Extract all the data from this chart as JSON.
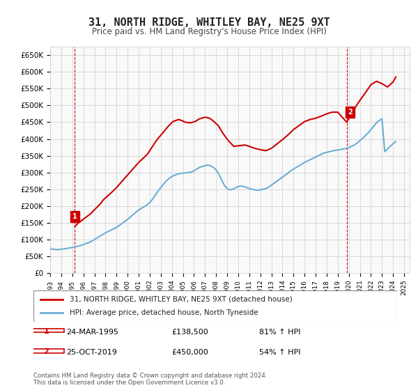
{
  "title": "31, NORTH RIDGE, WHITLEY BAY, NE25 9XT",
  "subtitle": "Price paid vs. HM Land Registry's House Price Index (HPI)",
  "legend_line1": "31, NORTH RIDGE, WHITLEY BAY, NE25 9XT (detached house)",
  "legend_line2": "HPI: Average price, detached house, North Tyneside",
  "footnote": "Contains HM Land Registry data © Crown copyright and database right 2024.\nThis data is licensed under the Open Government Licence v3.0.",
  "annotation1_label": "1",
  "annotation1_date": "24-MAR-1995",
  "annotation1_price": "£138,500",
  "annotation1_hpi": "81% ↑ HPI",
  "annotation2_label": "2",
  "annotation2_date": "25-OCT-2019",
  "annotation2_price": "£450,000",
  "annotation2_hpi": "54% ↑ HPI",
  "sale1_x": 1995.23,
  "sale1_y": 138500,
  "sale2_x": 2019.81,
  "sale2_y": 450000,
  "hpi_color": "#6baed6",
  "price_color": "#cc0000",
  "ylim": [
    0,
    675000
  ],
  "xlim_start": 1993,
  "xlim_end": 2025.5,
  "background_color": "#ffffff",
  "grid_color": "#cccccc",
  "annotation_box_color": "#cc0000",
  "hpi_data_x": [
    1993,
    1993.25,
    1993.5,
    1993.75,
    1994,
    1994.25,
    1994.5,
    1994.75,
    1995,
    1995.25,
    1995.5,
    1995.75,
    1996,
    1996.25,
    1996.5,
    1996.75,
    1997,
    1997.25,
    1997.5,
    1997.75,
    1998,
    1998.25,
    1998.5,
    1998.75,
    1999,
    1999.25,
    1999.5,
    1999.75,
    2000,
    2000.25,
    2000.5,
    2000.75,
    2001,
    2001.25,
    2001.5,
    2001.75,
    2002,
    2002.25,
    2002.5,
    2002.75,
    2003,
    2003.25,
    2003.5,
    2003.75,
    2004,
    2004.25,
    2004.5,
    2004.75,
    2005,
    2005.25,
    2005.5,
    2005.75,
    2006,
    2006.25,
    2006.5,
    2006.75,
    2007,
    2007.25,
    2007.5,
    2007.75,
    2008,
    2008.25,
    2008.5,
    2008.75,
    2009,
    2009.25,
    2009.5,
    2009.75,
    2010,
    2010.25,
    2010.5,
    2010.75,
    2011,
    2011.25,
    2011.5,
    2011.75,
    2012,
    2012.25,
    2012.5,
    2012.75,
    2013,
    2013.25,
    2013.5,
    2013.75,
    2014,
    2014.25,
    2014.5,
    2014.75,
    2015,
    2015.25,
    2015.5,
    2015.75,
    2016,
    2016.25,
    2016.5,
    2016.75,
    2017,
    2017.25,
    2017.5,
    2017.75,
    2018,
    2018.25,
    2018.5,
    2018.75,
    2019,
    2019.25,
    2019.5,
    2019.75,
    2020,
    2020.25,
    2020.5,
    2020.75,
    2021,
    2021.25,
    2021.5,
    2021.75,
    2022,
    2022.25,
    2022.5,
    2022.75,
    2023,
    2023.25,
    2023.5,
    2023.75,
    2024,
    2024.25
  ],
  "hpi_data_y": [
    72000,
    71000,
    70000,
    70000,
    71000,
    72000,
    73000,
    75000,
    76000,
    78000,
    80000,
    82000,
    85000,
    88000,
    91000,
    95000,
    100000,
    105000,
    110000,
    115000,
    120000,
    124000,
    128000,
    132000,
    136000,
    142000,
    148000,
    154000,
    160000,
    167000,
    174000,
    181000,
    188000,
    193000,
    198000,
    203000,
    210000,
    220000,
    232000,
    244000,
    255000,
    265000,
    275000,
    282000,
    288000,
    292000,
    295000,
    297000,
    298000,
    299000,
    300000,
    301000,
    305000,
    310000,
    315000,
    318000,
    320000,
    322000,
    320000,
    315000,
    308000,
    295000,
    278000,
    262000,
    252000,
    248000,
    250000,
    254000,
    258000,
    260000,
    258000,
    255000,
    252000,
    250000,
    248000,
    247000,
    248000,
    250000,
    252000,
    256000,
    262000,
    268000,
    274000,
    280000,
    286000,
    292000,
    298000,
    305000,
    310000,
    315000,
    320000,
    325000,
    330000,
    334000,
    338000,
    342000,
    346000,
    350000,
    354000,
    358000,
    360000,
    362000,
    364000,
    366000,
    367000,
    368000,
    370000,
    372000,
    374000,
    378000,
    382000,
    388000,
    395000,
    402000,
    410000,
    418000,
    428000,
    438000,
    448000,
    455000,
    460000,
    362000,
    370000,
    378000,
    386000,
    392000
  ],
  "price_data_x": [
    1995.23,
    1995.5,
    1995.9,
    1996.3,
    1996.7,
    1997.1,
    1997.5,
    1997.8,
    1998.2,
    1998.6,
    1999.0,
    1999.4,
    1999.8,
    2000.2,
    2000.6,
    2001.0,
    2001.4,
    2001.8,
    2002.2,
    2002.6,
    2003.1,
    2003.6,
    2004.1,
    2004.6,
    2004.9,
    2005.2,
    2005.7,
    2006.1,
    2006.5,
    2007.0,
    2007.4,
    2007.7,
    2008.2,
    2008.6,
    2009.1,
    2009.6,
    2010.1,
    2010.6,
    2011.0,
    2011.5,
    2012.0,
    2012.5,
    2013.0,
    2013.5,
    2014.0,
    2014.5,
    2015.0,
    2015.5,
    2016.0,
    2016.5,
    2017.0,
    2017.5,
    2018.0,
    2018.5,
    2019.0,
    2019.81,
    2020.5,
    2021.0,
    2021.5,
    2022.0,
    2022.5,
    2023.0,
    2023.5,
    2024.0,
    2024.25
  ],
  "price_data_y": [
    138500,
    148000,
    158000,
    168000,
    178000,
    192000,
    205000,
    218000,
    230000,
    242000,
    255000,
    270000,
    285000,
    300000,
    315000,
    330000,
    342000,
    355000,
    375000,
    395000,
    415000,
    435000,
    452000,
    458000,
    455000,
    450000,
    448000,
    452000,
    460000,
    465000,
    462000,
    455000,
    440000,
    418000,
    395000,
    378000,
    380000,
    382000,
    378000,
    372000,
    368000,
    365000,
    372000,
    385000,
    398000,
    412000,
    428000,
    440000,
    452000,
    458000,
    462000,
    468000,
    475000,
    480000,
    480000,
    450000,
    490000,
    515000,
    538000,
    562000,
    572000,
    565000,
    555000,
    570000,
    585000
  ]
}
